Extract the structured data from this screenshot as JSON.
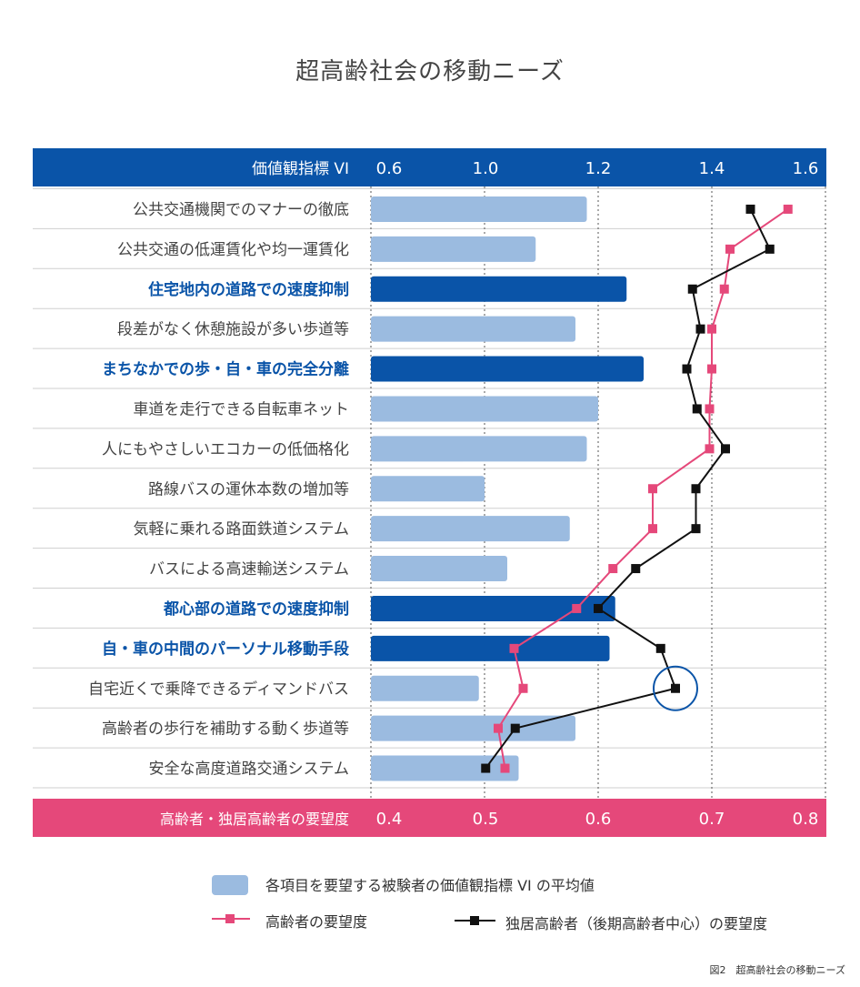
{
  "chart_data": {
    "type": "bar",
    "title": "超高齢社会の移動ニーズ",
    "categories": [
      "公共交通機関でのマナーの徹底",
      "公共交通の低運賃化や均一運賃化",
      "住宅地内の道路での速度抑制",
      "段差がなく休憩施設が多い歩道等",
      "まちなかでの歩・自・車の完全分離",
      "車道を走行できる自転車ネット",
      "人にもやさしいエコカーの低価格化",
      "路線バスの運休本数の増加等",
      "気軽に乗れる路面鉄道システム",
      "バスによる高速輸送システム",
      "都心部の道路での速度抑制",
      "自・車の中間のパーソナル移動手段",
      "自宅近くで乗降できるディマンドバス",
      "高齢者の歩行を補助する動く歩道等",
      "安全な高度道路交通システム"
    ],
    "highlighted": [
      false,
      false,
      true,
      false,
      true,
      false,
      false,
      false,
      false,
      false,
      true,
      true,
      false,
      false,
      false
    ],
    "top_axis": {
      "label": "価値観指標 VI",
      "ticks": [
        "0.6",
        "1.0",
        "1.2",
        "1.4",
        "1.6"
      ],
      "range": [
        0.8,
        1.6
      ]
    },
    "bottom_axis": {
      "label": "高齢者・独居高齢者の要望度",
      "ticks": [
        "0.4",
        "0.5",
        "0.6",
        "0.7",
        "0.8"
      ],
      "range": [
        0.4,
        0.8
      ]
    },
    "series": [
      {
        "name": "各項目を要望する被験者の価値観指標 VI の平均値",
        "kind": "bar",
        "axis": "top",
        "values": [
          1.18,
          1.09,
          1.25,
          1.16,
          1.28,
          1.2,
          1.18,
          1.0,
          1.15,
          1.04,
          1.23,
          1.22,
          0.99,
          1.16,
          1.06
        ]
      },
      {
        "name": "高齢者の要望度",
        "kind": "line",
        "axis": "bottom",
        "color": "#e5487a",
        "values": [
          0.767,
          0.716,
          0.711,
          0.7,
          0.7,
          0.698,
          0.698,
          0.648,
          0.648,
          0.613,
          0.581,
          0.526,
          0.534,
          0.512,
          0.518
        ]
      },
      {
        "name": "独居高齢者（後期高齢者中心）の要望度",
        "kind": "line",
        "axis": "bottom",
        "color": "#111111",
        "values": [
          0.734,
          0.751,
          0.683,
          0.69,
          0.678,
          0.687,
          0.712,
          0.686,
          0.686,
          0.633,
          0.6,
          0.655,
          0.668,
          0.527,
          0.501
        ]
      }
    ],
    "circled_point": {
      "series": 2,
      "index": 12
    }
  },
  "legend": {
    "bar_label": "各項目を要望する被験者の価値観指標 VI の平均値",
    "pink_label": "高齢者の要望度",
    "black_label": "独居高齢者（後期高齢者中心）の要望度"
  },
  "colors": {
    "header_blue": "#0a54a8",
    "bar_light": "#9bbbe0",
    "bar_dark": "#0a54a8",
    "footer_pink": "#e5487a",
    "highlight_text": "#0a54a8"
  },
  "caption": "図2　超高齢社会の移動ニーズ"
}
